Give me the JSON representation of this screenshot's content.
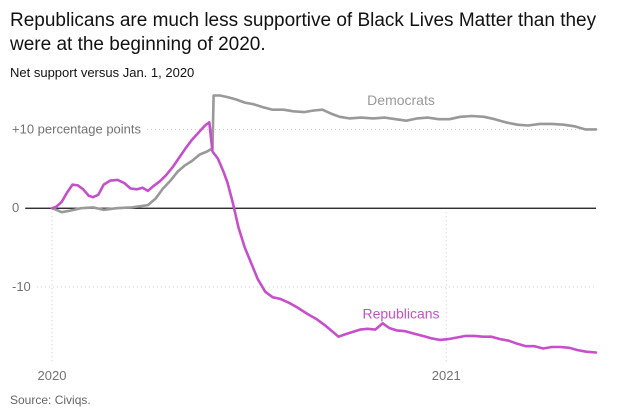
{
  "header": {
    "title": "Republicans are much less supportive of Black Lives Matter than they were at the beginning of 2020.",
    "subtitle": "Net support versus Jan. 1, 2020"
  },
  "footer": {
    "source": "Source: Civiqs."
  },
  "chart_data": {
    "type": "line",
    "title": "Republicans are much less supportive of Black Lives Matter than they were at the beginning of 2020.",
    "subtitle": "Net support versus Jan. 1, 2020",
    "xlabel": "",
    "ylabel": "",
    "x_range": [
      "2020-01-01",
      "2021-05-20"
    ],
    "ylim": [
      -19,
      15
    ],
    "x_ticks": [
      {
        "date": "2020-01-01",
        "label": "2020"
      },
      {
        "date": "2021-01-01",
        "label": "2021"
      }
    ],
    "y_ticks": [
      {
        "value": 10,
        "label": "+10 percentage points"
      },
      {
        "value": 0,
        "label": "0"
      },
      {
        "value": -10,
        "label": "-10"
      }
    ],
    "zero_line": true,
    "grid": "dotted horizontal at labeled values",
    "series": [
      {
        "name": "Democrats",
        "color": "#999999",
        "label_near": "2020-11-20",
        "points": [
          [
            "2020-01-01",
            0.0
          ],
          [
            "2020-01-05",
            -0.2
          ],
          [
            "2020-01-10",
            -0.5
          ],
          [
            "2020-01-18",
            -0.3
          ],
          [
            "2020-01-28",
            0.0
          ],
          [
            "2020-02-08",
            0.1
          ],
          [
            "2020-02-18",
            -0.2
          ],
          [
            "2020-03-01",
            0.0
          ],
          [
            "2020-03-15",
            0.1
          ],
          [
            "2020-03-30",
            0.4
          ],
          [
            "2020-04-06",
            1.2
          ],
          [
            "2020-04-13",
            2.5
          ],
          [
            "2020-04-20",
            3.5
          ],
          [
            "2020-04-27",
            4.7
          ],
          [
            "2020-05-03",
            5.4
          ],
          [
            "2020-05-10",
            6.0
          ],
          [
            "2020-05-17",
            6.8
          ],
          [
            "2020-05-24",
            7.2
          ],
          [
            "2020-05-29",
            7.6
          ],
          [
            "2020-05-30",
            14.3
          ],
          [
            "2020-06-05",
            14.3
          ],
          [
            "2020-06-12",
            14.1
          ],
          [
            "2020-06-20",
            13.8
          ],
          [
            "2020-06-28",
            13.4
          ],
          [
            "2020-07-06",
            13.2
          ],
          [
            "2020-07-15",
            12.8
          ],
          [
            "2020-07-24",
            12.5
          ],
          [
            "2020-08-03",
            12.5
          ],
          [
            "2020-08-12",
            12.3
          ],
          [
            "2020-08-22",
            12.2
          ],
          [
            "2020-08-31",
            12.4
          ],
          [
            "2020-09-08",
            12.5
          ],
          [
            "2020-09-16",
            12.0
          ],
          [
            "2020-09-24",
            11.6
          ],
          [
            "2020-10-03",
            11.4
          ],
          [
            "2020-10-14",
            11.5
          ],
          [
            "2020-10-25",
            11.4
          ],
          [
            "2020-11-05",
            11.5
          ],
          [
            "2020-11-15",
            11.3
          ],
          [
            "2020-11-25",
            11.1
          ],
          [
            "2020-12-05",
            11.4
          ],
          [
            "2020-12-15",
            11.5
          ],
          [
            "2020-12-25",
            11.3
          ],
          [
            "2021-01-04",
            11.3
          ],
          [
            "2021-01-14",
            11.6
          ],
          [
            "2021-01-25",
            11.7
          ],
          [
            "2021-02-05",
            11.6
          ],
          [
            "2021-02-15",
            11.3
          ],
          [
            "2021-02-25",
            10.9
          ],
          [
            "2021-03-08",
            10.6
          ],
          [
            "2021-03-18",
            10.5
          ],
          [
            "2021-03-29",
            10.7
          ],
          [
            "2021-04-09",
            10.7
          ],
          [
            "2021-04-20",
            10.6
          ],
          [
            "2021-04-30",
            10.4
          ],
          [
            "2021-05-10",
            10.0
          ],
          [
            "2021-05-20",
            10.0
          ]
        ]
      },
      {
        "name": "Republicans",
        "color": "#c64fcb",
        "label_near": "2020-11-20",
        "points": [
          [
            "2020-01-01",
            0.0
          ],
          [
            "2020-01-05",
            0.2
          ],
          [
            "2020-01-10",
            0.8
          ],
          [
            "2020-01-15",
            2.0
          ],
          [
            "2020-01-20",
            3.0
          ],
          [
            "2020-01-25",
            2.9
          ],
          [
            "2020-01-30",
            2.4
          ],
          [
            "2020-02-04",
            1.6
          ],
          [
            "2020-02-08",
            1.4
          ],
          [
            "2020-02-13",
            1.7
          ],
          [
            "2020-02-18",
            3.0
          ],
          [
            "2020-02-24",
            3.5
          ],
          [
            "2020-03-02",
            3.6
          ],
          [
            "2020-03-08",
            3.2
          ],
          [
            "2020-03-14",
            2.5
          ],
          [
            "2020-03-20",
            2.4
          ],
          [
            "2020-03-25",
            2.6
          ],
          [
            "2020-03-30",
            2.2
          ],
          [
            "2020-04-04",
            2.8
          ],
          [
            "2020-04-10",
            3.4
          ],
          [
            "2020-04-16",
            4.2
          ],
          [
            "2020-04-22",
            5.2
          ],
          [
            "2020-04-28",
            6.4
          ],
          [
            "2020-05-04",
            7.6
          ],
          [
            "2020-05-10",
            8.7
          ],
          [
            "2020-05-16",
            9.6
          ],
          [
            "2020-05-22",
            10.5
          ],
          [
            "2020-05-26",
            10.9
          ],
          [
            "2020-05-29",
            7.2
          ],
          [
            "2020-06-03",
            6.3
          ],
          [
            "2020-06-08",
            4.7
          ],
          [
            "2020-06-12",
            3.2
          ],
          [
            "2020-06-17",
            0.6
          ],
          [
            "2020-06-22",
            -2.4
          ],
          [
            "2020-06-28",
            -5.0
          ],
          [
            "2020-07-04",
            -7.0
          ],
          [
            "2020-07-10",
            -9.0
          ],
          [
            "2020-07-17",
            -10.6
          ],
          [
            "2020-07-24",
            -11.3
          ],
          [
            "2020-07-31",
            -11.5
          ],
          [
            "2020-08-08",
            -12.0
          ],
          [
            "2020-08-16",
            -12.6
          ],
          [
            "2020-08-25",
            -13.4
          ],
          [
            "2020-09-03",
            -14.1
          ],
          [
            "2020-09-10",
            -14.8
          ],
          [
            "2020-09-17",
            -15.6
          ],
          [
            "2020-09-23",
            -16.3
          ],
          [
            "2020-09-29",
            -16.0
          ],
          [
            "2020-10-06",
            -15.7
          ],
          [
            "2020-10-13",
            -15.4
          ],
          [
            "2020-10-20",
            -15.3
          ],
          [
            "2020-10-27",
            -15.4
          ],
          [
            "2020-11-03",
            -14.6
          ],
          [
            "2020-11-09",
            -15.2
          ],
          [
            "2020-11-16",
            -15.5
          ],
          [
            "2020-11-24",
            -15.6
          ],
          [
            "2020-12-02",
            -15.9
          ],
          [
            "2020-12-10",
            -16.2
          ],
          [
            "2020-12-18",
            -16.5
          ],
          [
            "2020-12-26",
            -16.7
          ],
          [
            "2021-01-03",
            -16.6
          ],
          [
            "2021-01-11",
            -16.4
          ],
          [
            "2021-01-19",
            -16.2
          ],
          [
            "2021-01-27",
            -16.2
          ],
          [
            "2021-02-04",
            -16.3
          ],
          [
            "2021-02-12",
            -16.3
          ],
          [
            "2021-02-20",
            -16.6
          ],
          [
            "2021-02-28",
            -16.8
          ],
          [
            "2021-03-08",
            -17.2
          ],
          [
            "2021-03-16",
            -17.5
          ],
          [
            "2021-03-24",
            -17.5
          ],
          [
            "2021-04-01",
            -17.8
          ],
          [
            "2021-04-09",
            -17.6
          ],
          [
            "2021-04-17",
            -17.6
          ],
          [
            "2021-04-25",
            -17.7
          ],
          [
            "2021-05-03",
            -18.0
          ],
          [
            "2021-05-11",
            -18.2
          ],
          [
            "2021-05-20",
            -18.3
          ]
        ]
      }
    ]
  }
}
